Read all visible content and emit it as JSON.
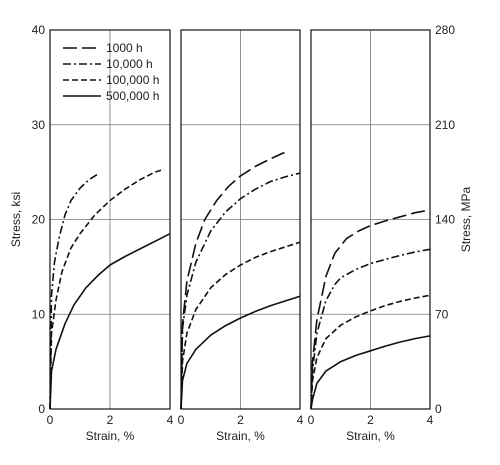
{
  "chart_data": [
    {
      "type": "line",
      "panel": 1,
      "xlabel": "Strain, %",
      "ylabel": "Stress, ksi",
      "xlim": [
        0,
        4
      ],
      "ylim": [
        0,
        40
      ],
      "xticks": [
        "0",
        "2",
        "4"
      ],
      "yticks": [
        "0",
        "10",
        "20",
        "30",
        "40"
      ],
      "grid": true,
      "legend": {
        "placement": "top-left",
        "entries": [
          "1000 h",
          "10,000 h",
          "100,000 h",
          "500,000 h"
        ]
      },
      "series": [
        {
          "name": "10,000 h",
          "style": "dash-dot",
          "x": [
            0,
            0.05,
            0.15,
            0.3,
            0.5,
            0.7,
            1.0,
            1.3,
            1.6
          ],
          "y": [
            0,
            12,
            15.5,
            18,
            20.5,
            22,
            23.3,
            24.2,
            24.8
          ]
        },
        {
          "name": "100,000 h",
          "style": "short-dash",
          "x": [
            0,
            0.05,
            0.2,
            0.4,
            0.7,
            1.0,
            1.5,
            2.0,
            2.5,
            3.0,
            3.5,
            3.8
          ],
          "y": [
            0,
            8,
            11.5,
            14.5,
            17,
            18.5,
            20.5,
            22,
            23.2,
            24.2,
            25,
            25.3
          ]
        },
        {
          "name": "500,000 h",
          "style": "solid",
          "x": [
            0,
            0.05,
            0.2,
            0.5,
            0.8,
            1.2,
            1.6,
            2.0,
            2.5,
            3.0,
            3.5,
            4.0
          ],
          "y": [
            0,
            4,
            6.3,
            9,
            11,
            12.8,
            14.1,
            15.2,
            16.1,
            16.9,
            17.7,
            18.5
          ]
        }
      ]
    },
    {
      "type": "line",
      "panel": 2,
      "xlabel": "Strain, %",
      "xlim": [
        0,
        4
      ],
      "ylim": [
        0,
        40
      ],
      "xticks": [
        "0",
        "2",
        "4"
      ],
      "grid": true,
      "series": [
        {
          "name": "1000 h",
          "style": "long-dash",
          "x": [
            0,
            0.05,
            0.2,
            0.5,
            0.8,
            1.2,
            1.6,
            2.0,
            2.5,
            3.0,
            3.5
          ],
          "y": [
            0,
            9,
            13.5,
            17.5,
            20,
            22,
            23.5,
            24.6,
            25.6,
            26.4,
            27.1
          ]
        },
        {
          "name": "10,000 h",
          "style": "dash-dot",
          "x": [
            0,
            0.05,
            0.2,
            0.5,
            1.0,
            1.5,
            2.0,
            2.5,
            3.0,
            3.5,
            4.0
          ],
          "y": [
            0,
            8.5,
            12,
            15.5,
            18.8,
            20.8,
            22.2,
            23.2,
            24,
            24.5,
            24.9
          ]
        },
        {
          "name": "100,000 h",
          "style": "short-dash",
          "x": [
            0,
            0.05,
            0.2,
            0.5,
            1.0,
            1.5,
            2.0,
            2.5,
            3.0,
            3.5,
            4.0
          ],
          "y": [
            0,
            5,
            8,
            10.5,
            12.8,
            14.2,
            15.2,
            16,
            16.6,
            17.1,
            17.6
          ]
        },
        {
          "name": "500,000 h",
          "style": "solid",
          "x": [
            0,
            0.05,
            0.2,
            0.5,
            1.0,
            1.5,
            2.0,
            2.5,
            3.0,
            3.5,
            4.0
          ],
          "y": [
            0,
            3,
            4.8,
            6.3,
            7.8,
            8.8,
            9.6,
            10.3,
            10.9,
            11.4,
            11.9
          ]
        }
      ]
    },
    {
      "type": "line",
      "panel": 3,
      "xlabel": "Strain, %",
      "ylabel": "Stress, MPa",
      "xlim": [
        0,
        4
      ],
      "ylim": [
        0,
        280
      ],
      "xticks": [
        "0",
        "2",
        "4"
      ],
      "yticks": [
        "0",
        "70",
        "140",
        "210",
        "280"
      ],
      "grid": true,
      "series": [
        {
          "name": "1000 h",
          "style": "long-dash",
          "x": [
            0,
            0.05,
            0.2,
            0.5,
            0.8,
            1.2,
            1.6,
            2.0,
            2.5,
            3.0,
            3.5,
            4.0
          ],
          "y": [
            0,
            35,
            66,
            98,
            115,
            126,
            131.5,
            135.5,
            139,
            142,
            145,
            147
          ]
        },
        {
          "name": "10,000 h",
          "style": "dash-dot",
          "x": [
            0,
            0.05,
            0.2,
            0.5,
            0.8,
            1.0,
            1.5,
            2.0,
            2.5,
            3.0,
            3.5,
            4.0
          ],
          "y": [
            0,
            28,
            56,
            80,
            92,
            97,
            103,
            107.5,
            110.5,
            113.5,
            116,
            118
          ]
        },
        {
          "name": "100,000 h",
          "style": "short-dash",
          "x": [
            0,
            0.05,
            0.2,
            0.5,
            1.0,
            1.5,
            2.0,
            2.5,
            3.0,
            3.5,
            4.0
          ],
          "y": [
            0,
            21,
            38,
            52,
            62,
            68,
            72.5,
            76.5,
            79.5,
            82,
            84
          ]
        },
        {
          "name": "500,000 h",
          "style": "solid",
          "x": [
            0,
            0.05,
            0.2,
            0.5,
            1.0,
            1.5,
            2.0,
            2.5,
            3.0,
            3.5,
            4.0
          ],
          "y": [
            0,
            7,
            19,
            28,
            35,
            39.5,
            43,
            46.5,
            49.5,
            52,
            54
          ]
        }
      ]
    }
  ]
}
